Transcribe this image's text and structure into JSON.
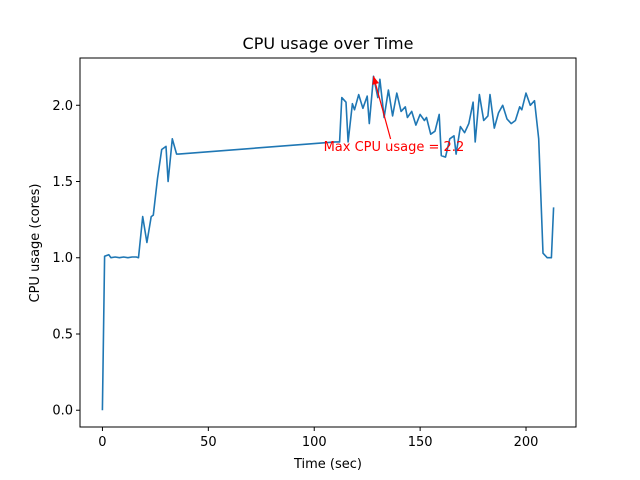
{
  "chart_data": {
    "type": "line",
    "title": "CPU usage over Time",
    "xlabel": "Time (sec)",
    "ylabel": "CPU usage (cores)",
    "xlim": [
      -10.6,
      223.6
    ],
    "ylim": [
      -0.11,
      2.31
    ],
    "xticks": [
      0,
      50,
      100,
      150,
      200
    ],
    "xtick_labels": [
      "0",
      "50",
      "100",
      "150",
      "200"
    ],
    "yticks": [
      0.0,
      0.5,
      1.0,
      1.5,
      2.0
    ],
    "ytick_labels": [
      "0.0",
      "0.5",
      "1.0",
      "1.5",
      "2.0"
    ],
    "grid": false,
    "series": [
      {
        "color": "#1f77b4",
        "x": [
          0,
          1,
          3,
          4,
          6,
          8,
          10,
          12,
          14,
          16,
          17,
          19,
          21,
          23,
          24,
          26,
          28,
          30,
          31,
          33,
          35,
          36,
          110,
          112,
          113,
          115,
          116,
          118,
          119,
          121,
          123,
          125,
          126,
          128,
          130,
          131,
          133,
          135,
          137,
          139,
          141,
          143,
          144,
          146,
          148,
          150,
          152,
          153,
          155,
          157,
          159,
          160,
          162,
          164,
          166,
          167,
          169,
          171,
          173,
          175,
          176,
          178,
          180,
          182,
          183,
          185,
          187,
          189,
          191,
          193,
          195,
          197,
          198,
          200,
          202,
          204,
          206,
          208,
          210,
          212,
          213
        ],
        "y": [
          0.0,
          1.01,
          1.02,
          1.0,
          1.005,
          1.0,
          1.005,
          1.0,
          1.005,
          1.005,
          1.0,
          1.27,
          1.1,
          1.27,
          1.28,
          1.52,
          1.71,
          1.73,
          1.5,
          1.78,
          1.68,
          1.68,
          1.76,
          1.76,
          2.05,
          2.02,
          1.76,
          2.01,
          1.97,
          2.07,
          1.98,
          2.06,
          1.88,
          2.19,
          2.05,
          2.17,
          1.92,
          2.1,
          1.93,
          2.08,
          1.96,
          1.99,
          1.92,
          1.96,
          1.87,
          1.94,
          1.9,
          1.92,
          1.81,
          1.83,
          1.94,
          1.67,
          1.66,
          1.78,
          1.8,
          1.68,
          1.86,
          1.82,
          1.88,
          2.02,
          1.76,
          2.07,
          1.9,
          1.93,
          2.07,
          1.85,
          1.95,
          2.0,
          1.91,
          1.88,
          1.9,
          1.99,
          1.97,
          2.08,
          2.0,
          2.03,
          1.78,
          1.03,
          1.0,
          1.0,
          1.33
        ]
      }
    ],
    "annotations": [
      {
        "text": "Max CPU usage = 2.2",
        "xy": [
          128,
          2.19
        ],
        "xytext": [
          103,
          1.7
        ],
        "color": "#ff0000"
      }
    ]
  }
}
